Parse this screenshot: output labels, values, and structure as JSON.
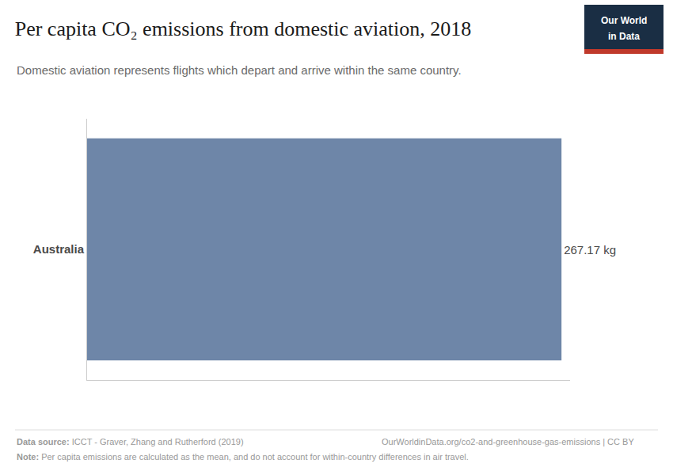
{
  "chart_data": {
    "type": "bar",
    "orientation": "horizontal",
    "title": "Per capita CO₂ emissions from domestic aviation, 2018",
    "subtitle": "Domestic aviation represents flights which depart and arrive within the same country.",
    "categories": [
      "Australia"
    ],
    "values": [
      267.17
    ],
    "value_labels": [
      "267.17 kg"
    ],
    "data_labels": true,
    "color": "#6e86a8",
    "xlim": [
      0,
      272
    ],
    "tick_labels": "y",
    "annotations": [
      "Data source:",
      " ICCT - Graver, Zhang and Rutherford (2019)",
      "OurWorldinData.org/co2-and-greenhouse-gas-emissions | CC BY",
      "Note:",
      " Per capita emissions are calculated as the mean, and do not account for within-country differences in air travel.",
      "Our World",
      "in Data"
    ]
  }
}
